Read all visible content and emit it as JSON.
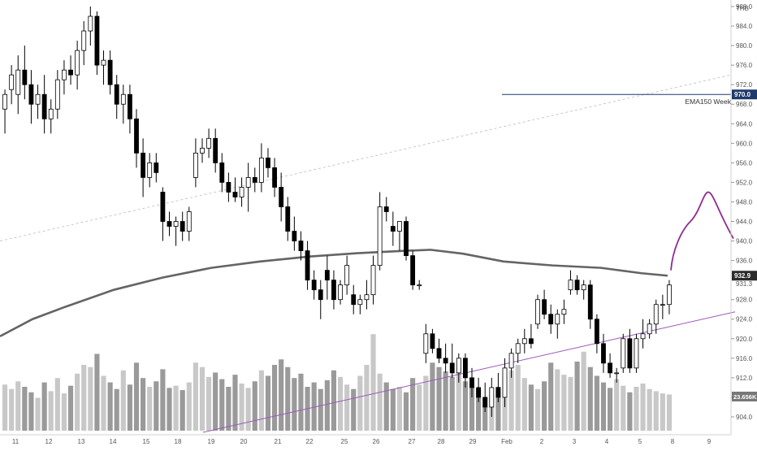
{
  "chart_data": {
    "type": "candlestick",
    "currency": "THB",
    "y_ticks": [
      904.0,
      908.0,
      912.0,
      916.0,
      920.0,
      924.0,
      928.0,
      931.3,
      936.0,
      940.0,
      944.0,
      948.0,
      952.0,
      956.0,
      960.0,
      964.0,
      968.0,
      972.0,
      976.0,
      980.0,
      984.0,
      988.0
    ],
    "ylim": [
      902,
      989
    ],
    "x_ticks": [
      "11",
      "12",
      "13",
      "14",
      "15",
      "18",
      "19",
      "20",
      "21",
      "22",
      "25",
      "26",
      "27",
      "28",
      "29",
      "Feb",
      "2",
      "3",
      "4",
      "5",
      "8",
      "9"
    ],
    "price_labels": {
      "level_line": "970.0",
      "ema_last": "932.9",
      "volume_last": "23.656K",
      "crosshair_axis": "931.3"
    },
    "annotations": {
      "level_line_label": "EMA150 Week"
    },
    "candles": [
      {
        "o": 967,
        "h": 971,
        "l": 962,
        "c": 970
      },
      {
        "o": 971,
        "h": 976,
        "l": 968,
        "c": 974
      },
      {
        "o": 970,
        "h": 978,
        "l": 966,
        "c": 975
      },
      {
        "o": 975,
        "h": 980,
        "l": 969,
        "c": 972
      },
      {
        "o": 972,
        "h": 975,
        "l": 964,
        "c": 968
      },
      {
        "o": 968,
        "h": 972,
        "l": 965,
        "c": 970
      },
      {
        "o": 970,
        "h": 974,
        "l": 962,
        "c": 965
      },
      {
        "o": 965,
        "h": 969,
        "l": 962,
        "c": 967
      },
      {
        "o": 967,
        "h": 975,
        "l": 965,
        "c": 973
      },
      {
        "o": 973,
        "h": 977,
        "l": 970,
        "c": 975
      },
      {
        "o": 975,
        "h": 978,
        "l": 972,
        "c": 974
      },
      {
        "o": 974,
        "h": 981,
        "l": 971,
        "c": 979
      },
      {
        "o": 979,
        "h": 985,
        "l": 976,
        "c": 983
      },
      {
        "o": 983,
        "h": 988,
        "l": 980,
        "c": 986
      },
      {
        "o": 986,
        "h": 987,
        "l": 974,
        "c": 976
      },
      {
        "o": 976,
        "h": 979,
        "l": 972,
        "c": 977
      },
      {
        "o": 977,
        "h": 979,
        "l": 970,
        "c": 972
      },
      {
        "o": 972,
        "h": 974,
        "l": 965,
        "c": 968
      },
      {
        "o": 968,
        "h": 972,
        "l": 964,
        "c": 970
      },
      {
        "o": 970,
        "h": 972,
        "l": 962,
        "c": 965
      },
      {
        "o": 965,
        "h": 967,
        "l": 955,
        "c": 958
      },
      {
        "o": 958,
        "h": 961,
        "l": 949,
        "c": 953
      },
      {
        "o": 953,
        "h": 958,
        "l": 951,
        "c": 956
      },
      {
        "o": 956,
        "h": 958,
        "l": 952,
        "c": 954
      },
      {
        "o": 950,
        "h": 951,
        "l": 940,
        "c": 944
      },
      {
        "o": 944,
        "h": 946,
        "l": 941,
        "c": 943
      },
      {
        "o": 943,
        "h": 945,
        "l": 939,
        "c": 944
      },
      {
        "o": 944,
        "h": 946,
        "l": 940,
        "c": 942
      },
      {
        "o": 942,
        "h": 947,
        "l": 940,
        "c": 946
      },
      {
        "o": 953,
        "h": 961,
        "l": 951,
        "c": 958
      },
      {
        "o": 958,
        "h": 961,
        "l": 956,
        "c": 959
      },
      {
        "o": 959,
        "h": 963,
        "l": 957,
        "c": 961
      },
      {
        "o": 961,
        "h": 963,
        "l": 954,
        "c": 956
      },
      {
        "o": 956,
        "h": 958,
        "l": 950,
        "c": 952
      },
      {
        "o": 952,
        "h": 954,
        "l": 948,
        "c": 950
      },
      {
        "o": 950,
        "h": 953,
        "l": 948,
        "c": 949
      },
      {
        "o": 949,
        "h": 953,
        "l": 947,
        "c": 951
      },
      {
        "o": 951,
        "h": 956,
        "l": 946,
        "c": 953
      },
      {
        "o": 953,
        "h": 955,
        "l": 950,
        "c": 952
      },
      {
        "o": 952,
        "h": 960,
        "l": 950,
        "c": 957
      },
      {
        "o": 957,
        "h": 959,
        "l": 953,
        "c": 955
      },
      {
        "o": 955,
        "h": 957,
        "l": 949,
        "c": 951
      },
      {
        "o": 951,
        "h": 954,
        "l": 944,
        "c": 947
      },
      {
        "o": 947,
        "h": 949,
        "l": 940,
        "c": 942
      },
      {
        "o": 942,
        "h": 945,
        "l": 938,
        "c": 940
      },
      {
        "o": 940,
        "h": 942,
        "l": 936,
        "c": 938
      },
      {
        "o": 938,
        "h": 940,
        "l": 930,
        "c": 932
      },
      {
        "o": 932,
        "h": 934,
        "l": 928,
        "c": 930
      },
      {
        "o": 930,
        "h": 932,
        "l": 924,
        "c": 928
      },
      {
        "o": 934,
        "h": 937,
        "l": 928,
        "c": 932
      },
      {
        "o": 932,
        "h": 934,
        "l": 926,
        "c": 928
      },
      {
        "o": 928,
        "h": 932,
        "l": 927,
        "c": 931
      },
      {
        "o": 931,
        "h": 937,
        "l": 929,
        "c": 935
      },
      {
        "o": 929,
        "h": 931,
        "l": 925,
        "c": 927
      },
      {
        "o": 927,
        "h": 929,
        "l": 925,
        "c": 928
      },
      {
        "o": 928,
        "h": 932,
        "l": 926,
        "c": 929
      },
      {
        "o": 929,
        "h": 937,
        "l": 927,
        "c": 935
      },
      {
        "o": 935,
        "h": 950,
        "l": 934,
        "c": 947
      },
      {
        "o": 947,
        "h": 949,
        "l": 944,
        "c": 946
      },
      {
        "o": 943,
        "h": 946,
        "l": 939,
        "c": 942
      },
      {
        "o": 942,
        "h": 944,
        "l": 938,
        "c": 944
      },
      {
        "o": 944,
        "h": 945,
        "l": 936,
        "c": 937
      },
      {
        "o": 937,
        "h": 938,
        "l": 930,
        "c": 931
      },
      {
        "o": 931,
        "h": 932,
        "l": 930,
        "c": 931
      },
      {
        "o": 917,
        "h": 923,
        "l": 915,
        "c": 921
      },
      {
        "o": 921,
        "h": 922,
        "l": 917,
        "c": 918
      },
      {
        "o": 918,
        "h": 920,
        "l": 915,
        "c": 916
      },
      {
        "o": 916,
        "h": 919,
        "l": 913,
        "c": 915
      },
      {
        "o": 915,
        "h": 919,
        "l": 912,
        "c": 913
      },
      {
        "o": 913,
        "h": 917,
        "l": 911,
        "c": 916
      },
      {
        "o": 916,
        "h": 917,
        "l": 910,
        "c": 912
      },
      {
        "o": 912,
        "h": 914,
        "l": 908,
        "c": 910
      },
      {
        "o": 910,
        "h": 912,
        "l": 907,
        "c": 908
      },
      {
        "o": 908,
        "h": 911,
        "l": 905,
        "c": 906
      },
      {
        "o": 906,
        "h": 912,
        "l": 904,
        "c": 910
      },
      {
        "o": 910,
        "h": 913,
        "l": 907,
        "c": 908
      },
      {
        "o": 908,
        "h": 916,
        "l": 906,
        "c": 914
      },
      {
        "o": 914,
        "h": 918,
        "l": 912,
        "c": 917
      },
      {
        "o": 917,
        "h": 920,
        "l": 915,
        "c": 919
      },
      {
        "o": 919,
        "h": 922,
        "l": 917,
        "c": 920
      },
      {
        "o": 920,
        "h": 923,
        "l": 918,
        "c": 919
      },
      {
        "o": 923,
        "h": 929,
        "l": 922,
        "c": 928
      },
      {
        "o": 928,
        "h": 930,
        "l": 924,
        "c": 925
      },
      {
        "o": 925,
        "h": 927,
        "l": 921,
        "c": 923
      },
      {
        "o": 923,
        "h": 926,
        "l": 920,
        "c": 925
      },
      {
        "o": 925,
        "h": 928,
        "l": 923,
        "c": 926
      },
      {
        "o": 930,
        "h": 934,
        "l": 929,
        "c": 932
      },
      {
        "o": 932,
        "h": 933,
        "l": 929,
        "c": 930
      },
      {
        "o": 930,
        "h": 932,
        "l": 928,
        "c": 931
      },
      {
        "o": 931,
        "h": 932,
        "l": 922,
        "c": 924
      },
      {
        "o": 924,
        "h": 925,
        "l": 917,
        "c": 919
      },
      {
        "o": 919,
        "h": 921,
        "l": 913,
        "c": 915
      },
      {
        "o": 915,
        "h": 917,
        "l": 912,
        "c": 913
      },
      {
        "o": 913,
        "h": 914,
        "l": 911,
        "c": 913
      },
      {
        "o": 914,
        "h": 921,
        "l": 913,
        "c": 920
      },
      {
        "o": 920,
        "h": 922,
        "l": 913,
        "c": 914
      },
      {
        "o": 914,
        "h": 921,
        "l": 913,
        "c": 920
      },
      {
        "o": 920,
        "h": 924,
        "l": 918,
        "c": 921
      },
      {
        "o": 921,
        "h": 924,
        "l": 920,
        "c": 923
      },
      {
        "o": 923,
        "h": 928,
        "l": 921,
        "c": 927
      },
      {
        "o": 927,
        "h": 929,
        "l": 924,
        "c": 927
      },
      {
        "o": 927,
        "h": 932,
        "l": 925,
        "c": 931
      }
    ],
    "volume": [
      42,
      38,
      45,
      40,
      35,
      30,
      44,
      36,
      48,
      34,
      41,
      52,
      60,
      58,
      70,
      50,
      44,
      38,
      55,
      42,
      62,
      48,
      40,
      45,
      56,
      39,
      41,
      37,
      44,
      62,
      58,
      49,
      53,
      47,
      40,
      51,
      43,
      39,
      45,
      55,
      50,
      60,
      65,
      58,
      48,
      52,
      40,
      44,
      38,
      46,
      55,
      49,
      42,
      38,
      50,
      60,
      88,
      52,
      44,
      38,
      40,
      35,
      48,
      42,
      50,
      62,
      58,
      54,
      49,
      57,
      45,
      41,
      38,
      30,
      33,
      40,
      50,
      55,
      60,
      48,
      42,
      38,
      45,
      62,
      56,
      51,
      49,
      63,
      72,
      58,
      50,
      44,
      39,
      47,
      41,
      35,
      40,
      43,
      38,
      36,
      34,
      33
    ],
    "ema_line_color": "#646464",
    "trend_color": "#9b59b6",
    "forecast_color": "#8e2b8e",
    "level_line_color": "#1f3a6b",
    "bull_color": "#ffffff",
    "bear_color": "#000000"
  }
}
